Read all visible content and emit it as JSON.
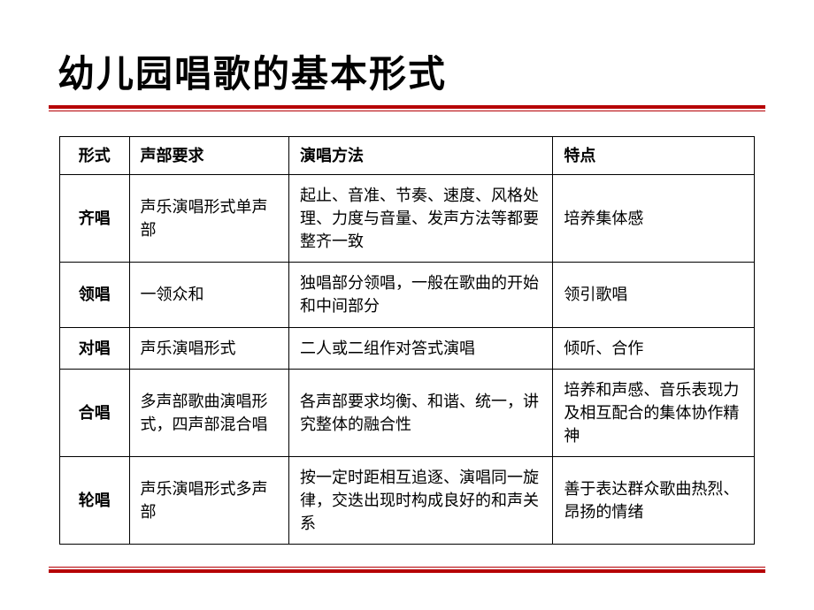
{
  "title": "幼儿园唱歌的基本形式",
  "colors": {
    "accent": "#b60005",
    "border": "#000000",
    "text": "#000000",
    "background": "#ffffff"
  },
  "typography": {
    "title_font": "华文行楷",
    "title_size_pt": 32,
    "body_size_pt": 14
  },
  "table": {
    "columns": [
      "形式",
      "声部要求",
      "演唱方法",
      "特点"
    ],
    "column_widths_pct": [
      10,
      23,
      38,
      29
    ],
    "rows": [
      {
        "form": "齐唱",
        "requirement": "声乐演唱形式单声部",
        "method": "起止、音准、节奏、速度、风格处理、力度与音量、发声方法等都要整齐一致",
        "feature": "培养集体感"
      },
      {
        "form": "领唱",
        "requirement": "一领众和",
        "method": "独唱部分领唱，一般在歌曲的开始和中间部分",
        "feature": "领引歌唱"
      },
      {
        "form": "对唱",
        "requirement": "声乐演唱形式",
        "method": "二人或二组作对答式演唱",
        "feature": "倾听、合作"
      },
      {
        "form": "合唱",
        "requirement": "多声部歌曲演唱形式，四声部混合唱",
        "method": "各声部要求均衡、和谐、统一，讲究整体的融合性",
        "feature": "培养和声感、音乐表现力及相互配合的集体协作精神"
      },
      {
        "form": "轮唱",
        "requirement": "声乐演唱形式多声部",
        "method": "按一定时距相互追逐、演唱同一旋律，交迭出现时构成良好的和声关系",
        "feature": "善于表达群众歌曲热烈、昂扬的情绪"
      }
    ]
  }
}
